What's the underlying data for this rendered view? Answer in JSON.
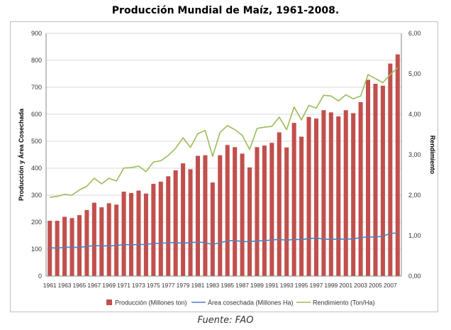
{
  "page": {
    "title": "Producción Mundial de Maíz, 1961-2008.",
    "source": "Fuente: FAO"
  },
  "chart_data": {
    "type": "bar",
    "title": "Producción Mundial de Maíz, 1961-2008.",
    "ylabel": "Producción y Área Cosechada",
    "y2label": "Rendimiento",
    "ylim": [
      0,
      900
    ],
    "y2lim": [
      0,
      6
    ],
    "yticks": [
      0,
      100,
      200,
      300,
      400,
      500,
      600,
      700,
      800,
      900
    ],
    "y2ticks": [
      "0,00",
      "1,00",
      "2,00",
      "3,00",
      "4,00",
      "5,00",
      "6,00"
    ],
    "grid": true,
    "legend_position": "bottom",
    "colors": {
      "production": "#c0504d",
      "area": "#4f81bd",
      "yield": "#9bbb59"
    },
    "categories": [
      1961,
      1962,
      1963,
      1964,
      1965,
      1966,
      1967,
      1968,
      1969,
      1970,
      1971,
      1972,
      1973,
      1974,
      1975,
      1976,
      1977,
      1978,
      1979,
      1980,
      1981,
      1982,
      1983,
      1984,
      1985,
      1986,
      1987,
      1988,
      1989,
      1990,
      1991,
      1992,
      1993,
      1994,
      1995,
      1996,
      1997,
      1998,
      1999,
      2000,
      2001,
      2002,
      2003,
      2004,
      2005,
      2006,
      2007,
      2008
    ],
    "xticklabels": [
      "1961",
      "1963",
      "1965",
      "1967",
      "1969",
      "1971",
      "1973",
      "1975",
      "1977",
      "1979",
      "1981",
      "1983",
      "1985",
      "1987",
      "1989",
      "1991",
      "1993",
      "1995",
      "1997",
      "1999",
      "2001",
      "2003",
      "2005",
      "2007"
    ],
    "series": [
      {
        "name": "Producción (Millones ton)",
        "type": "bar",
        "axis": "left",
        "values": [
          205,
          205,
          220,
          215,
          226,
          245,
          272,
          255,
          270,
          265,
          313,
          308,
          317,
          306,
          342,
          350,
          370,
          392,
          418,
          396,
          446,
          448,
          347,
          448,
          486,
          478,
          454,
          403,
          478,
          484,
          494,
          533,
          477,
          568,
          517,
          590,
          584,
          615,
          607,
          592,
          615,
          604,
          645,
          728,
          713,
          706,
          788,
          822
        ]
      },
      {
        "name": "Área cosechada (Millones Ha)",
        "type": "line",
        "axis": "left",
        "values": [
          105,
          104,
          107,
          107,
          106,
          110,
          113,
          112,
          112,
          113,
          117,
          116,
          117,
          117,
          121,
          121,
          124,
          124,
          122,
          124,
          126,
          124,
          117,
          124,
          130,
          132,
          128,
          128,
          130,
          131,
          134,
          136,
          133,
          136,
          135,
          139,
          141,
          137,
          136,
          137,
          137,
          138,
          143,
          145,
          145,
          148,
          158,
          160
        ]
      },
      {
        "name": "Rendimiento (Ton/Ha)",
        "type": "line",
        "axis": "right",
        "values": [
          1.95,
          1.97,
          2.02,
          2.0,
          2.13,
          2.22,
          2.42,
          2.28,
          2.42,
          2.35,
          2.67,
          2.68,
          2.72,
          2.58,
          2.82,
          2.85,
          2.98,
          3.16,
          3.42,
          3.18,
          3.52,
          3.6,
          2.96,
          3.55,
          3.72,
          3.62,
          3.48,
          3.13,
          3.65,
          3.68,
          3.7,
          3.93,
          3.62,
          4.18,
          3.86,
          4.22,
          4.15,
          4.47,
          4.45,
          4.33,
          4.48,
          4.38,
          4.45,
          4.98,
          4.88,
          4.78,
          4.98,
          5.15
        ]
      }
    ]
  }
}
